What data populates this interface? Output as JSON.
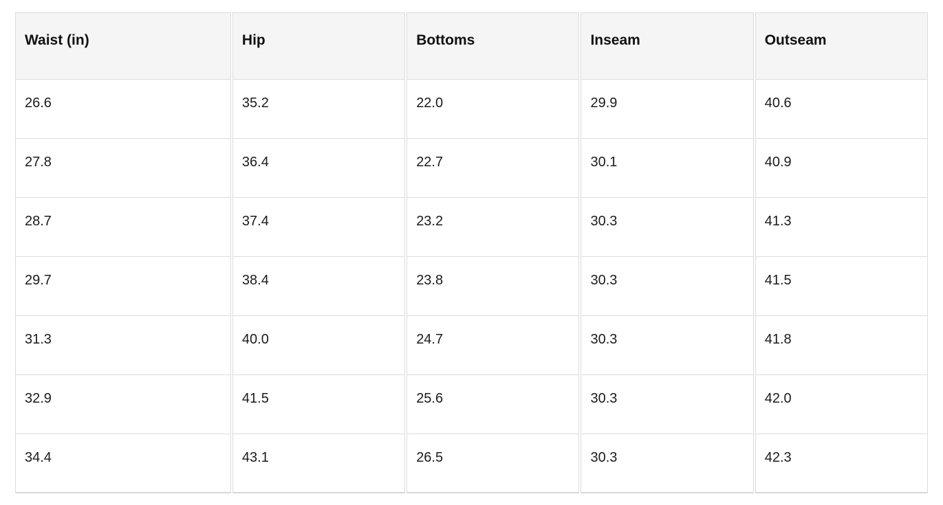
{
  "chart_data": {
    "type": "table",
    "columns": [
      "Waist (in)",
      "Hip",
      "Bottoms",
      "Inseam",
      "Outseam"
    ],
    "rows": [
      [
        "26.6",
        "35.2",
        "22.0",
        "29.9",
        "40.6"
      ],
      [
        "27.8",
        "36.4",
        "22.7",
        "30.1",
        "40.9"
      ],
      [
        "28.7",
        "37.4",
        "23.2",
        "30.3",
        "41.3"
      ],
      [
        "29.7",
        "38.4",
        "23.8",
        "30.3",
        "41.5"
      ],
      [
        "31.3",
        "40.0",
        "24.7",
        "30.3",
        "41.8"
      ],
      [
        "32.9",
        "41.5",
        "25.6",
        "30.3",
        "42.0"
      ],
      [
        "34.4",
        "43.1",
        "26.5",
        "30.3",
        "42.3"
      ]
    ]
  },
  "colors": {
    "header_bg": "#f5f5f5",
    "border": "#dcdcdc",
    "text": "#1b1b1b",
    "background": "#ffffff"
  }
}
